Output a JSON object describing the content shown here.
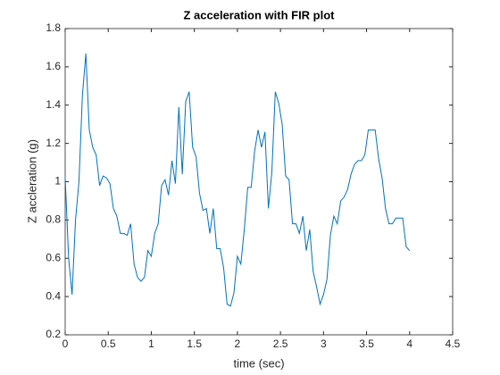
{
  "chart_data": {
    "type": "line",
    "title": "Z acceleration with FIR plot",
    "xlabel": "time (sec)",
    "ylabel": "Z accleration (g)",
    "x": [
      0,
      0.04,
      0.08,
      0.12,
      0.16,
      0.2,
      0.24,
      0.28,
      0.32,
      0.36,
      0.4,
      0.44,
      0.48,
      0.52,
      0.56,
      0.6,
      0.64,
      0.68,
      0.72,
      0.76,
      0.8,
      0.84,
      0.88,
      0.92,
      0.96,
      1.0,
      1.04,
      1.08,
      1.12,
      1.16,
      1.2,
      1.24,
      1.28,
      1.32,
      1.36,
      1.4,
      1.44,
      1.48,
      1.52,
      1.56,
      1.6,
      1.64,
      1.68,
      1.72,
      1.76,
      1.8,
      1.84,
      1.88,
      1.92,
      1.96,
      2.0,
      2.04,
      2.08,
      2.12,
      2.16,
      2.2,
      2.24,
      2.28,
      2.32,
      2.36,
      2.4,
      2.44,
      2.48,
      2.52,
      2.56,
      2.6,
      2.64,
      2.68,
      2.72,
      2.76,
      2.8,
      2.84,
      2.88,
      2.92,
      2.96,
      3.0,
      3.04,
      3.08,
      3.12,
      3.16,
      3.2,
      3.24,
      3.28,
      3.32,
      3.36,
      3.4,
      3.44,
      3.48,
      3.52,
      3.56,
      3.6,
      3.64,
      3.68,
      3.72,
      3.76,
      3.8,
      3.84,
      3.88,
      3.92,
      3.96,
      4.0
    ],
    "series": [
      {
        "name": "Z",
        "color": "#0072bd",
        "values": [
          1.02,
          0.6,
          0.41,
          0.8,
          1.0,
          1.45,
          1.67,
          1.27,
          1.18,
          1.14,
          0.98,
          1.03,
          1.02,
          0.99,
          0.86,
          0.82,
          0.73,
          0.73,
          0.72,
          0.78,
          0.57,
          0.5,
          0.48,
          0.5,
          0.64,
          0.61,
          0.73,
          0.78,
          0.98,
          1.01,
          0.93,
          1.11,
          0.99,
          1.39,
          1.04,
          1.42,
          1.47,
          1.18,
          1.13,
          0.94,
          0.85,
          0.86,
          0.73,
          0.86,
          0.65,
          0.65,
          0.55,
          0.36,
          0.35,
          0.42,
          0.61,
          0.57,
          0.75,
          0.97,
          0.97,
          1.16,
          1.27,
          1.18,
          1.26,
          0.86,
          1.05,
          1.47,
          1.41,
          1.3,
          1.03,
          1.01,
          0.78,
          0.78,
          0.73,
          0.82,
          0.64,
          0.75,
          0.53,
          0.45,
          0.36,
          0.41,
          0.49,
          0.72,
          0.82,
          0.78,
          0.9,
          0.92,
          0.96,
          1.04,
          1.09,
          1.11,
          1.11,
          1.14,
          1.27,
          1.27,
          1.27,
          1.12,
          1.02,
          0.86,
          0.78,
          0.78,
          0.81,
          0.81,
          0.81,
          0.66,
          0.64
        ]
      }
    ],
    "xlim": [
      0,
      4.5
    ],
    "xticks": [
      0,
      0.5,
      1,
      1.5,
      2,
      2.5,
      3,
      3.5,
      4,
      4.5
    ],
    "ylim": [
      0.2,
      1.8
    ],
    "yticks": [
      0.2,
      0.4,
      0.6,
      0.8,
      1,
      1.2,
      1.4,
      1.6,
      1.8
    ],
    "grid": false
  }
}
